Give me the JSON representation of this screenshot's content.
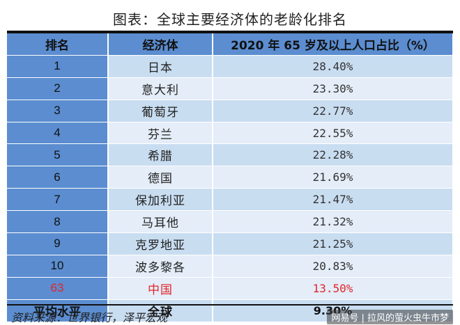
{
  "title": "图表：全球主要经济体的老龄化排名",
  "table": {
    "headers": {
      "rank": "排名",
      "economy": "经济体",
      "value": "2020 年 65 岁及以上人口占比（%）"
    },
    "rows": [
      {
        "rank": "1",
        "economy": "日本",
        "value": "28.40%"
      },
      {
        "rank": "2",
        "economy": "意大利",
        "value": "23.30%"
      },
      {
        "rank": "3",
        "economy": "葡萄牙",
        "value": "22.77%"
      },
      {
        "rank": "4",
        "economy": "芬兰",
        "value": "22.55%"
      },
      {
        "rank": "5",
        "economy": "希腊",
        "value": "22.28%"
      },
      {
        "rank": "6",
        "economy": "德国",
        "value": "21.69%"
      },
      {
        "rank": "7",
        "economy": "保加利亚",
        "value": "21.47%"
      },
      {
        "rank": "8",
        "economy": "马耳他",
        "value": "21.32%"
      },
      {
        "rank": "9",
        "economy": "克罗地亚",
        "value": "21.25%"
      },
      {
        "rank": "10",
        "economy": "波多黎各",
        "value": "20.83%"
      },
      {
        "rank": "63",
        "economy": "中国",
        "value": "13.50%"
      }
    ],
    "average": {
      "rank": "平均水平",
      "economy": "全球",
      "value": "9.30%"
    }
  },
  "source": "资料来源：世界银行，泽平宏观",
  "watermark": "网易号 | 拉风的萤火虫牛市梦",
  "colors": {
    "header_bg": "#5b8dd0",
    "row_bg": "#c9ddf1",
    "row_alt_bg": "#e4edf8",
    "highlight_text": "#e0252a"
  }
}
